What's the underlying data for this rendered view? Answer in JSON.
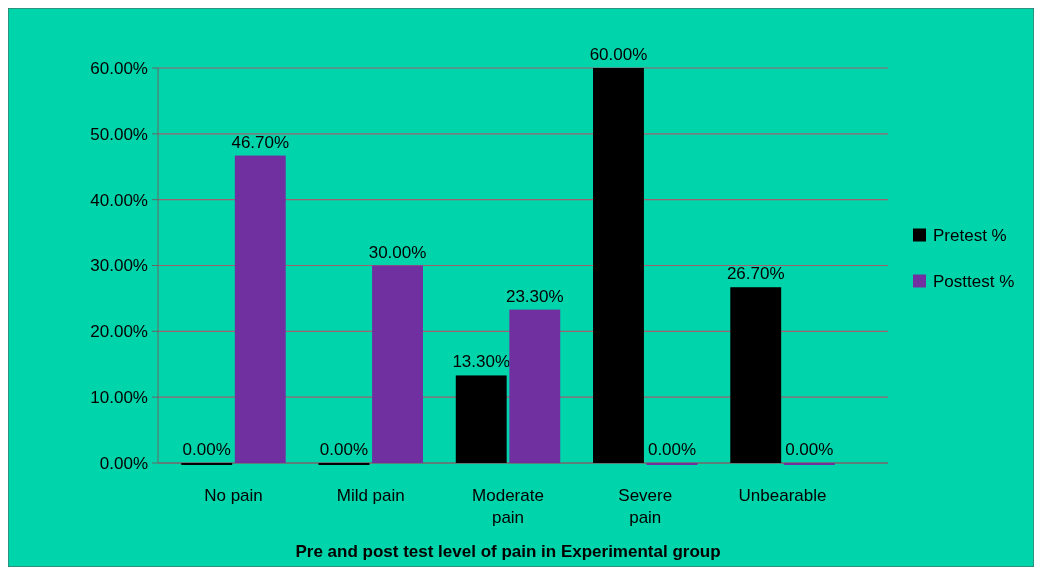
{
  "chart_data": {
    "type": "bar",
    "xlabel": "Pre and post test level of pain in Experimental group",
    "categories": [
      "No pain",
      "Mild pain",
      "Moderate pain",
      "Severe pain",
      "Unbearable"
    ],
    "series": [
      {
        "name": "Pretest %",
        "color": "#000000",
        "values": [
          0,
          0,
          13.3,
          60,
          26.7
        ],
        "value_labels": [
          "0.00%",
          "0.00%",
          "13.30%",
          "60.00%",
          "26.70%"
        ]
      },
      {
        "name": "Posttest %",
        "color": "#7030a0",
        "values": [
          46.7,
          30,
          23.3,
          0,
          0
        ],
        "value_labels": [
          "46.70%",
          "30.00%",
          "23.30%",
          "0.00%",
          "0.00%"
        ]
      }
    ],
    "ylim": [
      0,
      60
    ],
    "yticks": [
      {
        "value": 0,
        "label": "0.00%"
      },
      {
        "value": 10,
        "label": "10.00%"
      },
      {
        "value": 20,
        "label": "20.00%"
      },
      {
        "value": 30,
        "label": "30.00%"
      },
      {
        "value": 40,
        "label": "40.00%"
      },
      {
        "value": 50,
        "label": "50.00%"
      },
      {
        "value": 60,
        "label": "60.00%"
      }
    ],
    "grid": "y",
    "legend": "right"
  }
}
